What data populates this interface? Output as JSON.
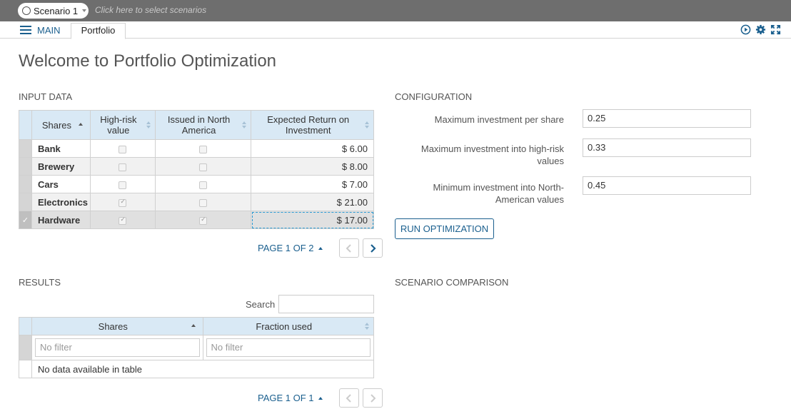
{
  "topbar": {
    "scenario_label": "Scenario 1",
    "hint": "Click here to select scenarios"
  },
  "tabs": {
    "menu_label": "MAIN",
    "active_tab": "Portfolio",
    "tool_icons": [
      "play-circle-icon",
      "gear-icon",
      "fullscreen-icon"
    ]
  },
  "page": {
    "title": "Welcome to Portfolio Optimization"
  },
  "input_data": {
    "title": "INPUT DATA",
    "columns": [
      "Shares",
      "High-risk value",
      "Issued in North America",
      "Expected Return on Investment"
    ],
    "rows": [
      {
        "share": "Bank",
        "high_risk": false,
        "north_america": false,
        "return": "$ 6.00"
      },
      {
        "share": "Brewery",
        "high_risk": false,
        "north_america": false,
        "return": "$ 8.00"
      },
      {
        "share": "Cars",
        "high_risk": false,
        "north_america": false,
        "return": "$ 7.00"
      },
      {
        "share": "Electronics",
        "high_risk": true,
        "north_america": false,
        "return": "$ 21.00"
      },
      {
        "share": "Hardware",
        "high_risk": true,
        "north_america": true,
        "return": "$ 17.00"
      }
    ],
    "pager": "PAGE 1 OF 2"
  },
  "configuration": {
    "title": "CONFIGURATION",
    "max_per_share_label": "Maximum investment per share",
    "max_per_share_value": "0.25",
    "max_high_risk_label": "Maximum investment into high-risk values",
    "max_high_risk_value": "0.33",
    "min_na_label": "Minimum investment into North-American values",
    "min_na_value": "0.45",
    "run_label": "RUN OPTIMIZATION"
  },
  "results": {
    "title": "RESULTS",
    "search_label": "Search",
    "search_value": "",
    "columns": [
      "Shares",
      "Fraction used"
    ],
    "filter_placeholder": "No filter",
    "empty_text": "No data available in table",
    "pager": "PAGE 1 OF 1"
  },
  "scenario_comparison": {
    "title": "SCENARIO COMPARISON"
  },
  "colors": {
    "accent": "#1a5f8e",
    "header_bg": "#d9e9f5",
    "topbar_bg": "#6e6e6e"
  }
}
